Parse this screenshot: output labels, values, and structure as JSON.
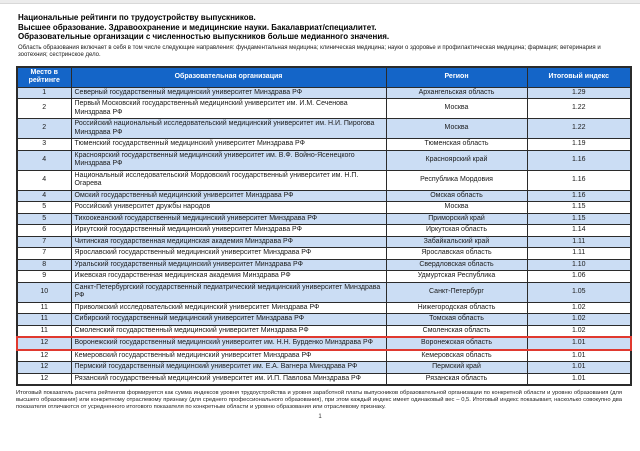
{
  "document": {
    "title_lines": [
      "Национальные рейтинги по трудоустройству выпускников.",
      "Высшее образование. Здравоохранение и медицинские науки. Бакалавриат/специалитет.",
      "Образовательные организации с численностью выпускников больше медианного значения."
    ],
    "scope_note": "Область образования включает в себя в том числе следующие направления:  фундаментальная медицина; клиническая медицина; науки о здоровье и профилактическая медицина; фармация; ветеринария и зоотехния; сестринское дело.",
    "footnote": "Итоговый показатель расчета рейтингов формируется как сумма индексов уровня трудоустройства и уровня заработной платы выпускников образовательной организации по конкретной области и уровню образования (для высшего образования) или конкретному отраслевому признаку (для среднего профессионального образования), при этом каждый индекс имеет одинаковый вес – 0,5. Итоговый индекс показывает, насколько совокупно два показателя отличаются от усредненного итогового показателя по конкретным области и уровню образования или отраслевому признаку.",
    "page_number": "1"
  },
  "table": {
    "headers": {
      "rank": "Место в рейтинге",
      "org": "Образовательная организация",
      "region": "Регион",
      "index": "Итоговый индекс"
    },
    "rows": [
      {
        "rank": "1",
        "org": "Северный государственный медицинский университет Минздрава РФ",
        "region": "Архангельская область",
        "index": "1.29",
        "highlighted": false
      },
      {
        "rank": "2",
        "org": "Первый Московский государственный медицинский университет им. И.М. Сеченова Минздрава РФ",
        "region": "Москва",
        "index": "1.22",
        "highlighted": false
      },
      {
        "rank": "2",
        "org": "Российский национальный исследовательский медицинский университет им. Н.И. Пирогова Минздрава РФ",
        "region": "Москва",
        "index": "1.22",
        "highlighted": false
      },
      {
        "rank": "3",
        "org": "Тюменский государственный медицинский университет Минздрава РФ",
        "region": "Тюменская область",
        "index": "1.19",
        "highlighted": false
      },
      {
        "rank": "4",
        "org": "Красноярский государственный медицинский университет им. В.Ф. Войно-Ясенецкого Минздрава РФ",
        "region": "Красноярский край",
        "index": "1.16",
        "highlighted": false
      },
      {
        "rank": "4",
        "org": "Национальный исследовательский Мордовский государственный университет им. Н.П. Огарева",
        "region": "Республика Мордовия",
        "index": "1.16",
        "highlighted": false
      },
      {
        "rank": "4",
        "org": "Омский государственный медицинский университет Минздрава РФ",
        "region": "Омская область",
        "index": "1.16",
        "highlighted": false
      },
      {
        "rank": "5",
        "org": "Российский университет дружбы народов",
        "region": "Москва",
        "index": "1.15",
        "highlighted": false
      },
      {
        "rank": "5",
        "org": "Тихоокеанский государственный медицинский университет Минздрава РФ",
        "region": "Приморский край",
        "index": "1.15",
        "highlighted": false
      },
      {
        "rank": "6",
        "org": "Иркутский государственный медицинский университет Минздрава РФ",
        "region": "Иркутская область",
        "index": "1.14",
        "highlighted": false
      },
      {
        "rank": "7",
        "org": "Читинская государственная медицинская академия Минздрава РФ",
        "region": "Забайкальский край",
        "index": "1.11",
        "highlighted": false
      },
      {
        "rank": "7",
        "org": "Ярославский государственный медицинский университет Минздрава РФ",
        "region": "Ярославская область",
        "index": "1.11",
        "highlighted": false
      },
      {
        "rank": "8",
        "org": "Уральский государственный медицинский университет Минздрава РФ",
        "region": "Свердловская область",
        "index": "1.10",
        "highlighted": false
      },
      {
        "rank": "9",
        "org": "Ижевская государственная медицинская академия Минздрава РФ",
        "region": "Удмуртская Республика",
        "index": "1.06",
        "highlighted": false
      },
      {
        "rank": "10",
        "org": "Санкт-Петербургский государственный педиатрический медицинский университет Минздрава РФ",
        "region": "Санкт-Петербург",
        "index": "1.05",
        "highlighted": false
      },
      {
        "rank": "11",
        "org": "Приволжский исследовательский медицинский университет Минздрава РФ",
        "region": "Нижегородская область",
        "index": "1.02",
        "highlighted": false
      },
      {
        "rank": "11",
        "org": "Сибирский государственный медицинский университет Минздрава РФ",
        "region": "Томская область",
        "index": "1.02",
        "highlighted": false
      },
      {
        "rank": "11",
        "org": "Смоленский государственный медицинский университет Минздрава РФ",
        "region": "Смоленская область",
        "index": "1.02",
        "highlighted": false
      },
      {
        "rank": "12",
        "org": "Воронежский государственный медицинский университет им. Н.Н. Бурденко Минздрава РФ",
        "region": "Воронежская область",
        "index": "1.01",
        "highlighted": true
      },
      {
        "rank": "12",
        "org": "Кемеровский государственный медицинский университет Минздрава РФ",
        "region": "Кемеровская область",
        "index": "1.01",
        "highlighted": false
      },
      {
        "rank": "12",
        "org": "Пермский государственный медицинский университет им. Е.А. Вагнера Минздрава РФ",
        "region": "Пермский край",
        "index": "1.01",
        "highlighted": false
      },
      {
        "rank": "12",
        "org": "Рязанский государственный медицинский университет им. И.П. Павлова Минздрава РФ",
        "region": "Рязанская область",
        "index": "1.01",
        "highlighted": false
      }
    ]
  },
  "colors": {
    "header_bg": "#1465c8",
    "alt_row_bg": "#cbddf4",
    "highlight_border": "#e0392f"
  }
}
